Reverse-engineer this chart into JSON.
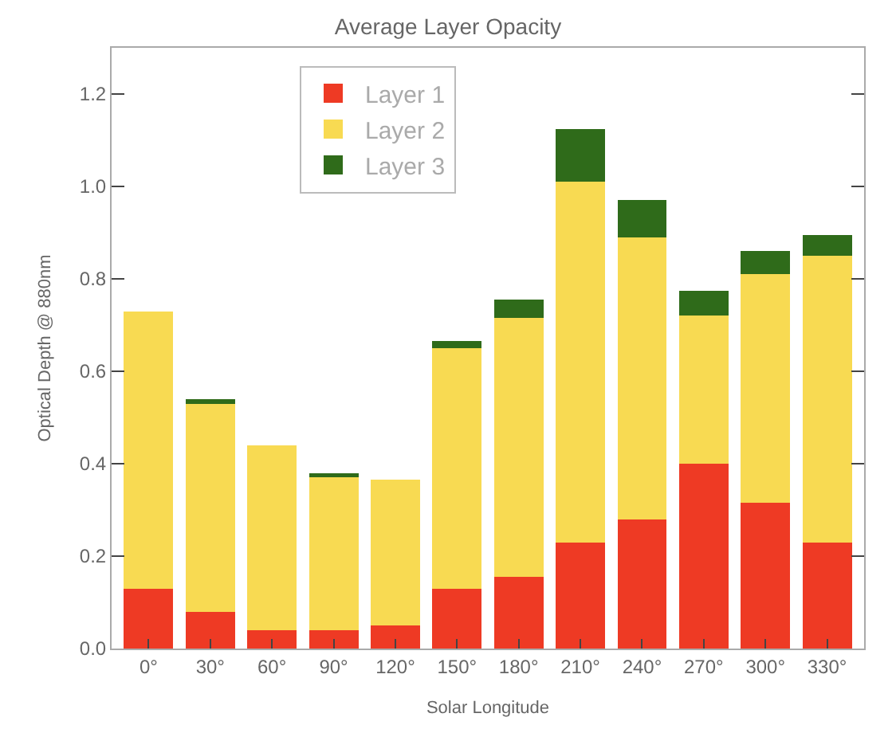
{
  "chart_data": {
    "type": "bar",
    "title": "Average Layer Opacity",
    "xlabel": "Solar Longitude",
    "ylabel": "Optical Depth @ 880nm",
    "categories": [
      "0°",
      "30°",
      "60°",
      "90°",
      "120°",
      "150°",
      "180°",
      "210°",
      "240°",
      "270°",
      "300°",
      "330°"
    ],
    "stacked": true,
    "series": [
      {
        "name": "Layer 1",
        "color": "#ee3a24",
        "values": [
          0.13,
          0.08,
          0.04,
          0.04,
          0.05,
          0.13,
          0.155,
          0.23,
          0.28,
          0.4,
          0.315,
          0.23
        ]
      },
      {
        "name": "Layer 2",
        "color": "#f8da52",
        "values": [
          0.6,
          0.45,
          0.4,
          0.33,
          0.315,
          0.52,
          0.56,
          0.78,
          0.61,
          0.32,
          0.495,
          0.62
        ]
      },
      {
        "name": "Layer 3",
        "color": "#2f6b1a",
        "values": [
          0,
          0.01,
          0,
          0.01,
          0,
          0.015,
          0.04,
          0.115,
          0.08,
          0.055,
          0.05,
          0.045
        ]
      }
    ],
    "ylim": [
      0,
      1.3
    ],
    "yticks": [
      {
        "value": 0,
        "label": "0.0"
      },
      {
        "value": 0.2,
        "label": "0.2"
      },
      {
        "value": 0.4,
        "label": "0.4"
      },
      {
        "value": 0.6,
        "label": "0.6"
      },
      {
        "value": 0.8,
        "label": "0.8"
      },
      {
        "value": 1.0,
        "label": "1.0"
      },
      {
        "value": 1.2,
        "label": "1.2"
      }
    ],
    "legend": "top left"
  }
}
